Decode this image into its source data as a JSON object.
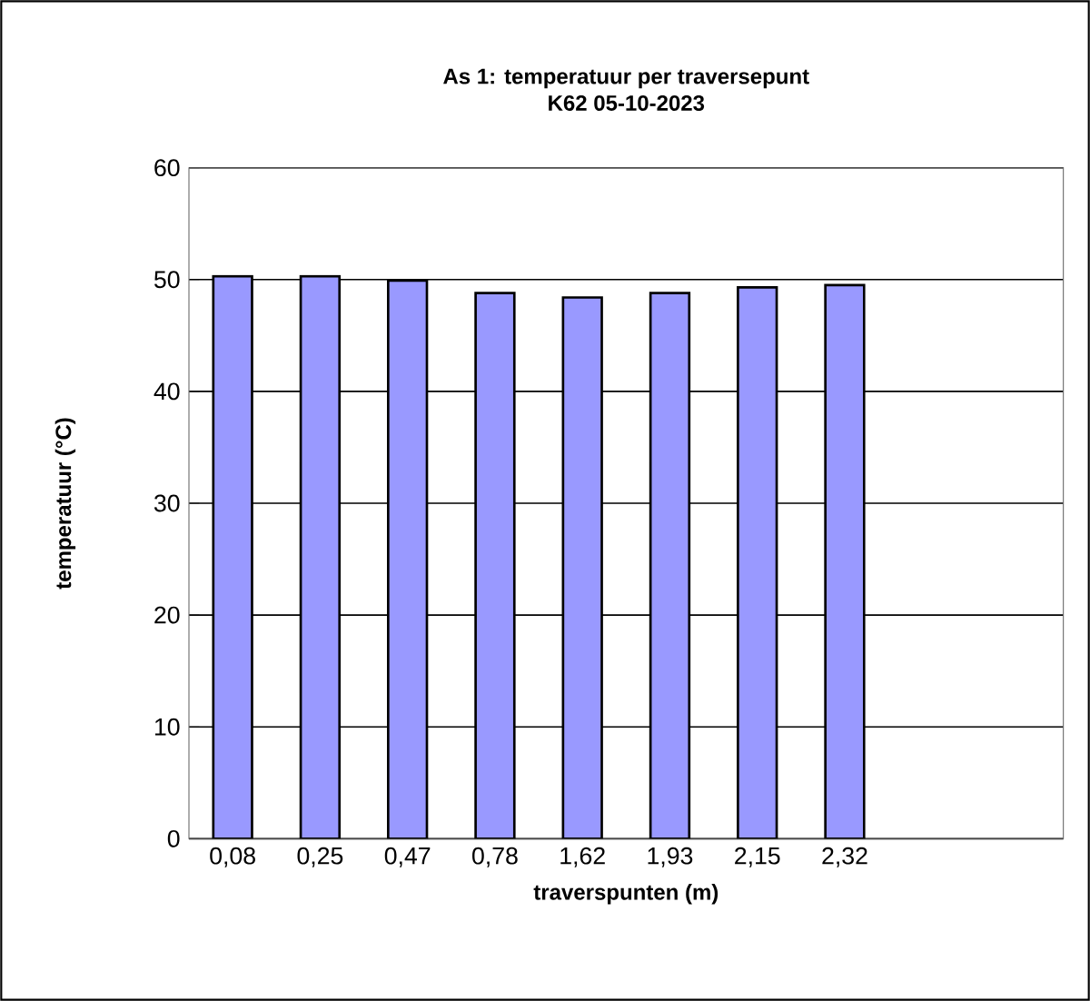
{
  "chart_data": {
    "type": "bar",
    "title": "As 1: temperatuur per traversepunt",
    "subtitle": "K62 05-10-2023",
    "xlabel": "traverspunten (m)",
    "ylabel": "temperatuur (°C)",
    "categories": [
      "0,08",
      "0,25",
      "0,47",
      "0,78",
      "1,62",
      "1,93",
      "2,15",
      "2,32",
      null,
      null
    ],
    "values": [
      50.3,
      50.3,
      49.9,
      48.8,
      48.4,
      48.8,
      49.3,
      49.5,
      null,
      null
    ],
    "color": "#9999ff",
    "ylim": [
      0,
      60
    ],
    "yticks": [
      0,
      10,
      20,
      30,
      40,
      50,
      60
    ],
    "grid": "y"
  }
}
